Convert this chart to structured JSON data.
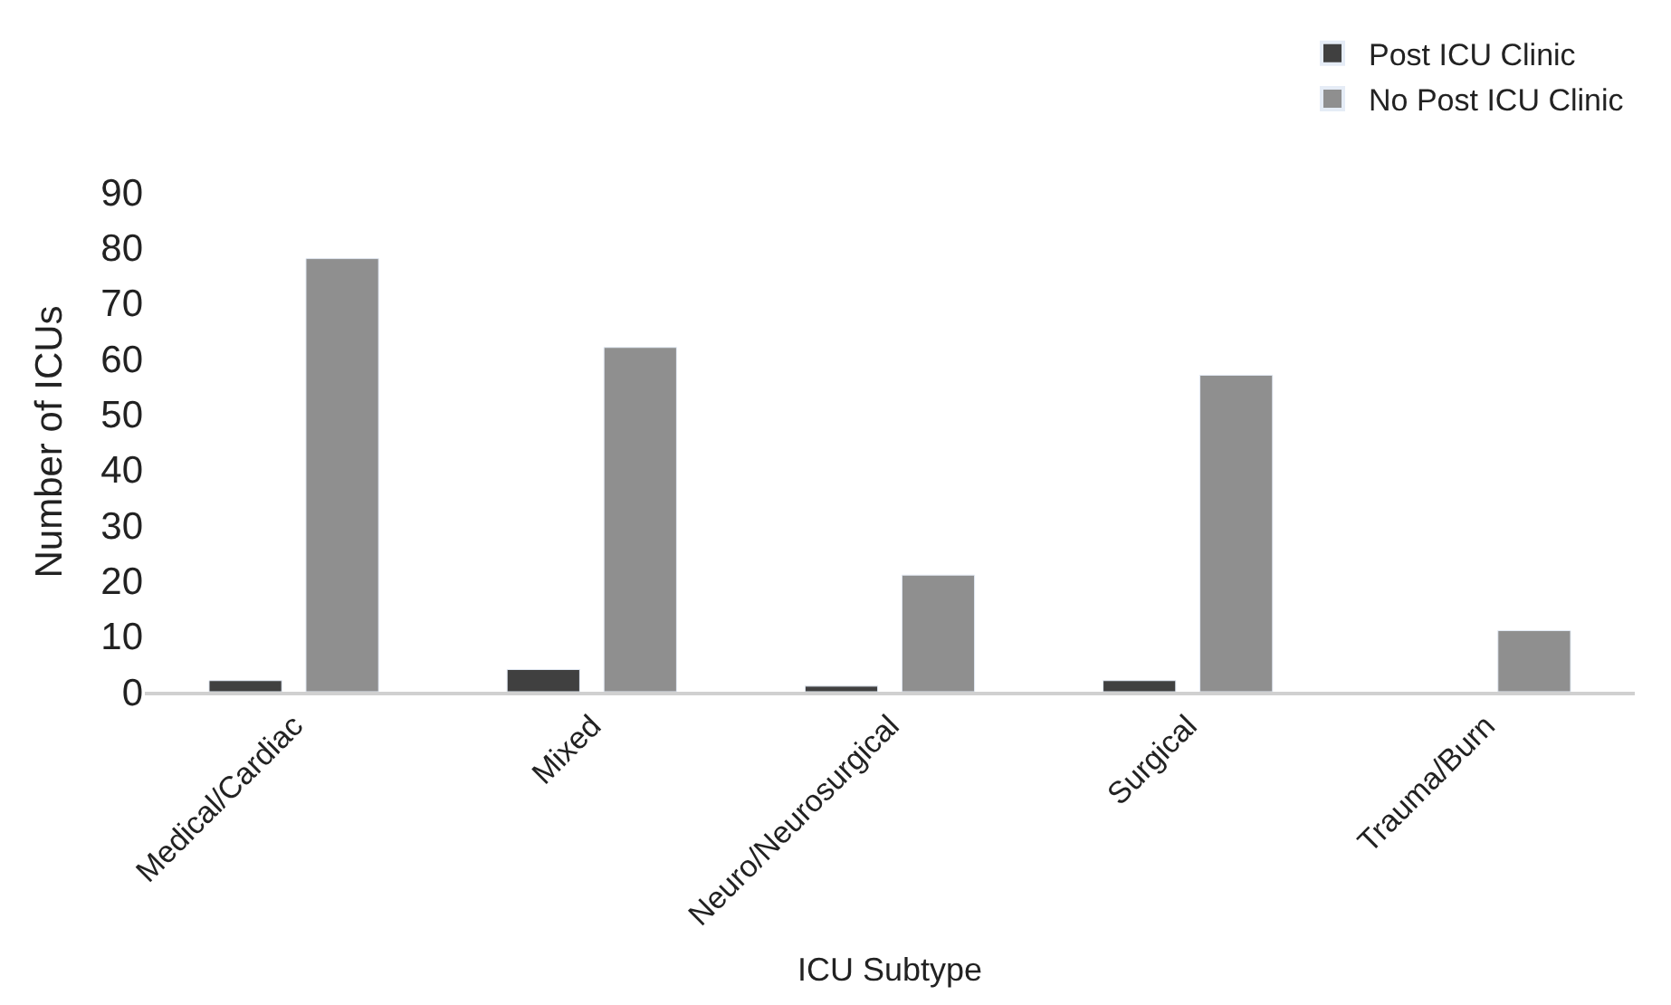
{
  "chart_data": {
    "type": "bar",
    "xlabel": "ICU Subtype",
    "ylabel": "Number of ICUs",
    "categories": [
      "Medical/Cardiac",
      "Mixed",
      "Neuro/Neurosurgical",
      "Surgical",
      "Trauma/Burn"
    ],
    "series": [
      {
        "name": "Post ICU Clinic",
        "color": "#404040",
        "values": [
          2,
          4,
          1,
          2,
          null
        ]
      },
      {
        "name": "No Post ICU Clinic",
        "color": "#8f8f8f",
        "values": [
          78,
          62,
          21,
          57,
          11
        ]
      }
    ],
    "ylim": [
      0,
      90
    ],
    "yticks": [
      0,
      10,
      20,
      30,
      40,
      50,
      60,
      70,
      80,
      90
    ],
    "legend": "top right"
  }
}
